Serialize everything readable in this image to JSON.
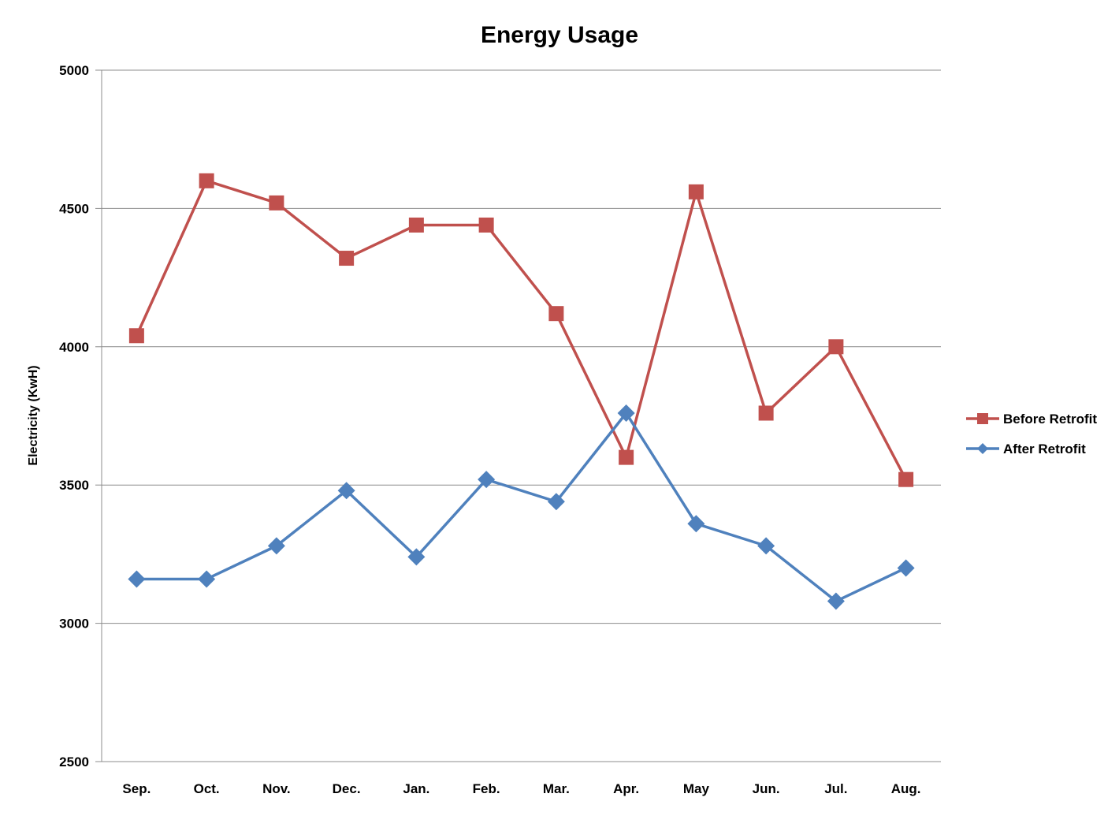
{
  "chart_data": {
    "type": "line",
    "title": "Energy Usage",
    "xlabel": "",
    "ylabel": "Electricity (KwH)",
    "categories": [
      "Sep.",
      "Oct.",
      "Nov.",
      "Dec.",
      "Jan.",
      "Feb.",
      "Mar.",
      "Apr.",
      "May",
      "Jun.",
      "Jul.",
      "Aug."
    ],
    "ylim": [
      2500,
      5000
    ],
    "yticks": [
      "2500",
      "3000",
      "3500",
      "4000",
      "4500",
      "5000"
    ],
    "grid": true,
    "legend_position": "right",
    "series": [
      {
        "name": "Before Retrofit",
        "color": "#c0504d",
        "marker": "square",
        "values": [
          4040,
          4600,
          4520,
          4320,
          4440,
          4440,
          4120,
          3600,
          4560,
          3760,
          4000,
          3520
        ]
      },
      {
        "name": "After Retrofit",
        "color": "#4f81bd",
        "marker": "diamond",
        "values": [
          3160,
          3160,
          3280,
          3480,
          3240,
          3520,
          3440,
          3760,
          3360,
          3280,
          3080,
          3200
        ]
      }
    ]
  }
}
